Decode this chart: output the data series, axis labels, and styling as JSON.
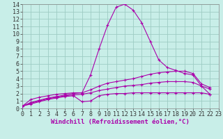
{
  "xlabel": "Windchill (Refroidissement éolien,°C)",
  "bg_color": "#c8eee8",
  "line_color": "#aa00aa",
  "grid_color": "#9dccc4",
  "xlim": [
    0,
    23
  ],
  "ylim": [
    0,
    14
  ],
  "xticks": [
    0,
    1,
    2,
    3,
    4,
    5,
    6,
    7,
    8,
    9,
    10,
    11,
    12,
    13,
    14,
    15,
    16,
    17,
    18,
    19,
    20,
    21,
    22,
    23
  ],
  "yticks": [
    0,
    1,
    2,
    3,
    4,
    5,
    6,
    7,
    8,
    9,
    10,
    11,
    12,
    13,
    14
  ],
  "series": [
    {
      "x": [
        0,
        1,
        2,
        3,
        4,
        5,
        6,
        7,
        8,
        9,
        10,
        11,
        12,
        13,
        14,
        15,
        16,
        17,
        18,
        19,
        20,
        21,
        22
      ],
      "y": [
        0.3,
        1.2,
        1.5,
        1.7,
        1.9,
        2.0,
        2.1,
        2.1,
        4.5,
        8.0,
        11.2,
        13.6,
        14.0,
        13.2,
        11.5,
        9.0,
        6.5,
        5.5,
        5.1,
        4.7,
        4.5,
        3.0,
        1.9
      ]
    },
    {
      "x": [
        0,
        1,
        2,
        3,
        4,
        5,
        6,
        7,
        8,
        9,
        10,
        11,
        12,
        13,
        14,
        15,
        16,
        17,
        18,
        19,
        20,
        21,
        22
      ],
      "y": [
        0.3,
        0.8,
        1.1,
        1.4,
        1.6,
        1.8,
        2.0,
        2.1,
        2.5,
        3.0,
        3.4,
        3.6,
        3.8,
        4.0,
        4.3,
        4.6,
        4.8,
        4.9,
        5.0,
        5.0,
        4.7,
        3.3,
        2.8
      ]
    },
    {
      "x": [
        0,
        1,
        2,
        3,
        4,
        5,
        6,
        7,
        8,
        9,
        10,
        11,
        12,
        13,
        14,
        15,
        16,
        17,
        18,
        19,
        20,
        21,
        22
      ],
      "y": [
        0.3,
        0.7,
        1.0,
        1.3,
        1.5,
        1.7,
        1.8,
        1.9,
        2.1,
        2.4,
        2.6,
        2.8,
        3.0,
        3.1,
        3.2,
        3.4,
        3.5,
        3.6,
        3.6,
        3.6,
        3.5,
        3.0,
        2.6
      ]
    },
    {
      "x": [
        0,
        1,
        2,
        3,
        4,
        5,
        6,
        7,
        8,
        9,
        10,
        11,
        12,
        13,
        14,
        15,
        16,
        17,
        18,
        19,
        20,
        21,
        22
      ],
      "y": [
        0.3,
        0.6,
        0.9,
        1.2,
        1.4,
        1.6,
        1.7,
        0.9,
        1.0,
        1.7,
        1.9,
        2.0,
        2.0,
        2.1,
        2.1,
        2.1,
        2.1,
        2.1,
        2.1,
        2.1,
        2.1,
        2.1,
        1.9
      ]
    }
  ],
  "tick_fontsize": 6,
  "xlabel_fontsize": 6.5,
  "figsize": [
    3.2,
    2.0
  ],
  "dpi": 100
}
